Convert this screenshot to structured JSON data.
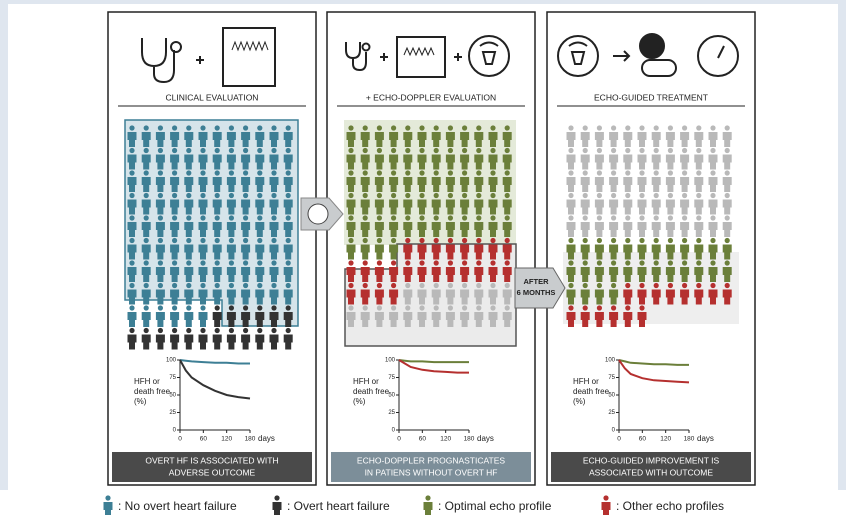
{
  "panels": [
    {
      "title": "CLINICAL EVALUATION",
      "caption": [
        "OVERT HF IS ASSOCIATED WITH",
        "ADVERSE OUTCOME"
      ],
      "chart": {
        "type": "line",
        "ylabel": [
          "HFH or",
          "death free",
          "(%)"
        ],
        "xlabel": "days",
        "xlim": [
          0,
          180
        ],
        "ylim": [
          0,
          100
        ],
        "xticks": [
          0,
          60,
          120,
          180
        ],
        "yticks": [
          0,
          25,
          50,
          75,
          100
        ],
        "x": [
          0,
          15,
          30,
          60,
          90,
          120,
          150,
          180
        ],
        "series": [
          {
            "color": "#3d7f95",
            "values": [
              100,
              99,
              98,
              97,
              96,
              96,
              95,
              95
            ]
          },
          {
            "color": "#333333",
            "values": [
              100,
              85,
              75,
              64,
              56,
              50,
              47,
              45
            ]
          }
        ]
      }
    },
    {
      "title": "+ ECHO-DOPPLER EVALUATION",
      "caption": [
        "ECHO-DOPPLER PROGNASTICATES",
        "IN PATIENS WITHOUT OVERT HF"
      ],
      "chart": {
        "type": "line",
        "ylabel": [
          "HFH or",
          "death free",
          "(%)"
        ],
        "xlabel": "days",
        "xlim": [
          0,
          180
        ],
        "ylim": [
          0,
          100
        ],
        "xticks": [
          0,
          60,
          120,
          180
        ],
        "yticks": [
          0,
          25,
          50,
          75,
          100
        ],
        "x": [
          0,
          15,
          30,
          60,
          90,
          120,
          150,
          180
        ],
        "series": [
          {
            "color": "#6b7f3a",
            "values": [
              100,
              99,
              98,
              98,
              97,
              97,
              97,
              97
            ]
          },
          {
            "color": "#b5302f",
            "values": [
              100,
              95,
              90,
              86,
              84,
              83,
              82,
              82
            ]
          }
        ]
      }
    },
    {
      "title": "ECHO-GUIDED TREATMENT",
      "caption": [
        "ECHO-GUIDED IMPROVEMENT IS",
        "ASSOCIATED WITH OUTCOME"
      ],
      "chart": {
        "type": "line",
        "ylabel": [
          "HFH or",
          "death free",
          "(%)"
        ],
        "xlabel": "days",
        "xlim": [
          0,
          180
        ],
        "ylim": [
          0,
          100
        ],
        "xticks": [
          0,
          60,
          120,
          180
        ],
        "yticks": [
          0,
          25,
          50,
          75,
          100
        ],
        "x": [
          0,
          15,
          30,
          60,
          90,
          120,
          150,
          180
        ],
        "series": [
          {
            "color": "#6b7f3a",
            "values": [
              100,
              98,
              96,
              95,
              94,
              94,
              93,
              93
            ]
          },
          {
            "color": "#b5302f",
            "values": [
              100,
              88,
              80,
              74,
              71,
              70,
              69,
              68
            ]
          }
        ]
      }
    }
  ],
  "arrow_label": [
    "AFTER",
    "6 MONTHS"
  ],
  "legend": [
    {
      "label": ": No overt heart failure",
      "color": "#3d7f95"
    },
    {
      "label": ": Overt heart failure",
      "color": "#333333"
    },
    {
      "label": ": Optimal echo profile",
      "color": "#6b7f3a"
    },
    {
      "label": ": Other echo profiles",
      "color": "#b5302f"
    }
  ]
}
